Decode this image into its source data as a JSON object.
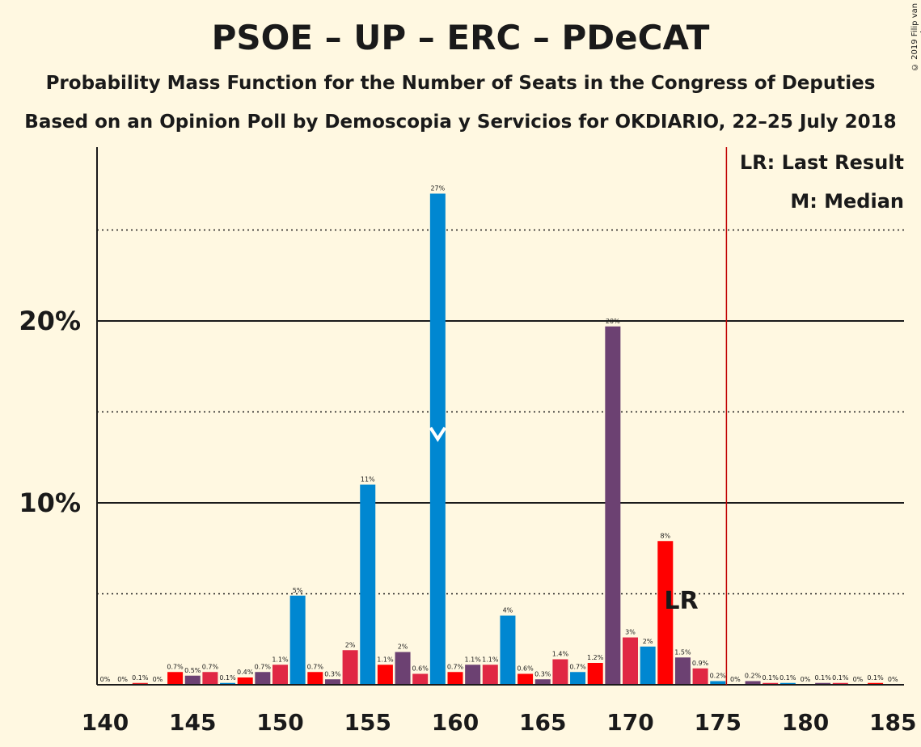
{
  "header": {
    "title": "PSOE – UP – ERC – PDeCAT",
    "subtitle1": "Probability Mass Function for the Number of Seats in the Congress of Deputies",
    "subtitle2": "Based on an Opinion Poll by Demoscopia y Servicios for OKDIARIO, 22–25 July 2018",
    "copyright": "© 2019 Filip van Laenen"
  },
  "legend": {
    "lr": "LR: Last Result",
    "m": "M: Median"
  },
  "annotations": {
    "lr_label": "LR"
  },
  "chart_data": {
    "type": "bar",
    "title": "PSOE – UP – ERC – PDeCAT",
    "xlabel": "",
    "ylabel": "",
    "xlim": [
      140,
      185
    ],
    "ylim": [
      0,
      29
    ],
    "x_ticks": [
      "140",
      "145",
      "150",
      "155",
      "160",
      "165",
      "170",
      "175",
      "180",
      "185"
    ],
    "y_ticks": [
      {
        "value": 10,
        "label": "10%"
      },
      {
        "value": 20,
        "label": "20%"
      }
    ],
    "gridlines_solid": [
      10,
      20
    ],
    "gridlines_dotted": [
      5,
      15,
      25
    ],
    "last_result": 176,
    "median": 159,
    "legend_position": "top-right",
    "colors": {
      "red": "#e8242a",
      "blue": "#0087d1",
      "purple": "#6c4172",
      "pink": "#e02844",
      "brightred": "#ff0000"
    },
    "bars": [
      {
        "x": 140,
        "value": 0,
        "label": "0%",
        "color": "#e8242a"
      },
      {
        "x": 141,
        "value": 0,
        "label": "0%",
        "color": "#e8242a"
      },
      {
        "x": 142,
        "value": 0.1,
        "label": "0.1%",
        "color": "#e8242a"
      },
      {
        "x": 143,
        "value": 0,
        "label": "0%",
        "color": "#e8242a"
      },
      {
        "x": 144,
        "value": 0.7,
        "label": "0.7%",
        "color": "#ff0000"
      },
      {
        "x": 145,
        "value": 0.5,
        "label": "0.5%",
        "color": "#6c4172"
      },
      {
        "x": 146,
        "value": 0.7,
        "label": "0.7%",
        "color": "#e02844"
      },
      {
        "x": 147,
        "value": 0.1,
        "label": "0.1%",
        "color": "#0087d1"
      },
      {
        "x": 148,
        "value": 0.4,
        "label": "0.4%",
        "color": "#ff0000"
      },
      {
        "x": 149,
        "value": 0.7,
        "label": "0.7%",
        "color": "#6c4172"
      },
      {
        "x": 150,
        "value": 1.1,
        "label": "1.1%",
        "color": "#e02844"
      },
      {
        "x": 151,
        "value": 4.9,
        "label": "5%",
        "color": "#0087d1"
      },
      {
        "x": 152,
        "value": 0.7,
        "label": "0.7%",
        "color": "#ff0000"
      },
      {
        "x": 153,
        "value": 0.3,
        "label": "0.3%",
        "color": "#6c4172"
      },
      {
        "x": 154,
        "value": 1.9,
        "label": "2%",
        "color": "#e02844"
      },
      {
        "x": 155,
        "value": 11,
        "label": "11%",
        "color": "#0087d1"
      },
      {
        "x": 156,
        "value": 1.1,
        "label": "1.1%",
        "color": "#ff0000"
      },
      {
        "x": 157,
        "value": 1.8,
        "label": "2%",
        "color": "#6c4172"
      },
      {
        "x": 158,
        "value": 0.6,
        "label": "0.6%",
        "color": "#e02844"
      },
      {
        "x": 159,
        "value": 27,
        "label": "27%",
        "color": "#0087d1"
      },
      {
        "x": 160,
        "value": 0.7,
        "label": "0.7%",
        "color": "#ff0000"
      },
      {
        "x": 161,
        "value": 1.1,
        "label": "1.1%",
        "color": "#6c4172"
      },
      {
        "x": 162,
        "value": 1.1,
        "label": "1.1%",
        "color": "#e02844"
      },
      {
        "x": 163,
        "value": 3.8,
        "label": "4%",
        "color": "#0087d1"
      },
      {
        "x": 164,
        "value": 0.6,
        "label": "0.6%",
        "color": "#ff0000"
      },
      {
        "x": 165,
        "value": 0.3,
        "label": "0.3%",
        "color": "#6c4172"
      },
      {
        "x": 166,
        "value": 1.4,
        "label": "1.4%",
        "color": "#e02844"
      },
      {
        "x": 167,
        "value": 0.7,
        "label": "0.7%",
        "color": "#0087d1"
      },
      {
        "x": 168,
        "value": 1.2,
        "label": "1.2%",
        "color": "#ff0000"
      },
      {
        "x": 169,
        "value": 19.7,
        "label": "20%",
        "color": "#6c4172"
      },
      {
        "x": 170,
        "value": 2.6,
        "label": "3%",
        "color": "#e02844"
      },
      {
        "x": 171,
        "value": 2.1,
        "label": "2%",
        "color": "#0087d1"
      },
      {
        "x": 172,
        "value": 7.9,
        "label": "8%",
        "color": "#ff0000"
      },
      {
        "x": 173,
        "value": 1.5,
        "label": "1.5%",
        "color": "#6c4172"
      },
      {
        "x": 174,
        "value": 0.9,
        "label": "0.9%",
        "color": "#e02844"
      },
      {
        "x": 175,
        "value": 0.2,
        "label": "0.2%",
        "color": "#0087d1"
      },
      {
        "x": 176,
        "value": 0,
        "label": "0%",
        "color": "#ff0000"
      },
      {
        "x": 177,
        "value": 0.2,
        "label": "0.2%",
        "color": "#6c4172"
      },
      {
        "x": 178,
        "value": 0.1,
        "label": "0.1%",
        "color": "#e02844"
      },
      {
        "x": 179,
        "value": 0.1,
        "label": "0.1%",
        "color": "#0087d1"
      },
      {
        "x": 180,
        "value": 0,
        "label": "0%",
        "color": "#ff0000"
      },
      {
        "x": 181,
        "value": 0.1,
        "label": "0.1%",
        "color": "#6c4172"
      },
      {
        "x": 182,
        "value": 0.1,
        "label": "0.1%",
        "color": "#e02844"
      },
      {
        "x": 183,
        "value": 0,
        "label": "0%",
        "color": "#0087d1"
      },
      {
        "x": 184,
        "value": 0.1,
        "label": "0.1%",
        "color": "#ff0000"
      },
      {
        "x": 185,
        "value": 0,
        "label": "0%",
        "color": "#6c4172"
      }
    ]
  }
}
